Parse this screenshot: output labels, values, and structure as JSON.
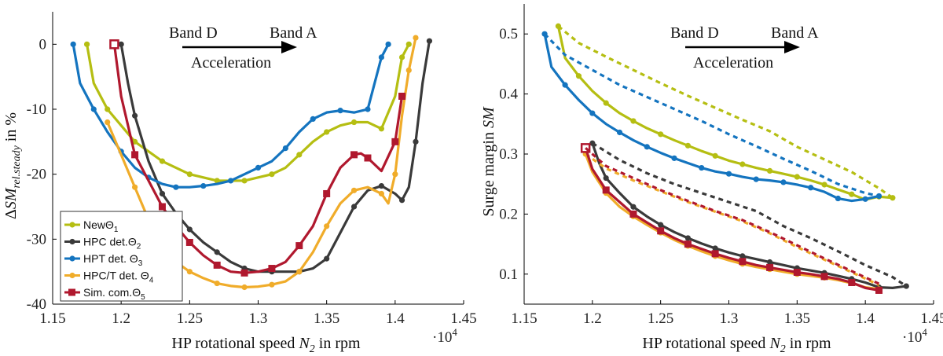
{
  "colors": {
    "new": "#b5be12",
    "hpc": "#3a3a3a",
    "hpt": "#1474bf",
    "hpct": "#f0ac2a",
    "sim": "#b0182e"
  },
  "chart_data": [
    {
      "type": "line",
      "ylabel": "ΔSM_rel.steady in %",
      "ylabel_parts": {
        "delta": "Δ",
        "sym": "SM",
        "sub": "rel.steady",
        "unit": " in %"
      },
      "xlabel": "HP rotational speed N_2 in rpm",
      "xlabel_parts": {
        "pre": "HP rotational speed ",
        "sym": "N",
        "sub": "2",
        "unit": " in rpm"
      },
      "x_exponent_label": "·10",
      "x_exponent_power": "4",
      "xlim": [
        1.15,
        1.45
      ],
      "ylim": [
        -40,
        5
      ],
      "xticks": [
        "1.15",
        "1.2",
        "1.25",
        "1.3",
        "1.35",
        "1.4",
        "1.45"
      ],
      "yticks": [
        "0",
        "-10",
        "-20",
        "-30",
        "-40"
      ],
      "annotation": {
        "left": "Band D",
        "right": "Band A",
        "below": "Acceleration"
      },
      "legend": [
        {
          "key": "new",
          "label": "New",
          "sym": "Θ",
          "sub": "1"
        },
        {
          "key": "hpc",
          "label": "HPC det.",
          "sym": "Θ",
          "sub": "2"
        },
        {
          "key": "hpt",
          "label": "HPT det. ",
          "sym": "Θ",
          "sub": "3"
        },
        {
          "key": "hpct",
          "label": "HPC/T det. ",
          "sym": "Θ",
          "sub": "4"
        },
        {
          "key": "sim",
          "label": "Sim. com.",
          "sym": "Θ",
          "sub": "5"
        }
      ],
      "series": [
        {
          "key": "new",
          "x": [
            1.175,
            1.18,
            1.19,
            1.2,
            1.21,
            1.22,
            1.23,
            1.24,
            1.25,
            1.26,
            1.27,
            1.28,
            1.29,
            1.3,
            1.31,
            1.32,
            1.33,
            1.34,
            1.35,
            1.36,
            1.37,
            1.38,
            1.39,
            1.4,
            1.405,
            1.41
          ],
          "y": [
            0,
            -6,
            -10,
            -12.5,
            -15,
            -16.5,
            -18,
            -19,
            -20,
            -20.5,
            -21,
            -21,
            -21,
            -20.5,
            -20,
            -19,
            -17,
            -15,
            -13.5,
            -12.5,
            -12,
            -12,
            -13,
            -8,
            -2,
            0
          ]
        },
        {
          "key": "hpc",
          "x": [
            1.2,
            1.205,
            1.21,
            1.22,
            1.23,
            1.24,
            1.25,
            1.26,
            1.27,
            1.28,
            1.29,
            1.3,
            1.31,
            1.32,
            1.33,
            1.34,
            1.35,
            1.36,
            1.37,
            1.38,
            1.39,
            1.4,
            1.405,
            1.41,
            1.415,
            1.42,
            1.425
          ],
          "y": [
            0,
            -6,
            -11,
            -18,
            -23,
            -26,
            -28.5,
            -30.5,
            -32,
            -33.5,
            -34.5,
            -35,
            -35,
            -35,
            -35,
            -34.5,
            -33,
            -29,
            -25,
            -22.5,
            -21.8,
            -23,
            -24,
            -22,
            -15,
            -6,
            0.5
          ]
        },
        {
          "key": "hpt",
          "x": [
            1.165,
            1.17,
            1.18,
            1.19,
            1.2,
            1.21,
            1.22,
            1.23,
            1.24,
            1.25,
            1.26,
            1.27,
            1.28,
            1.29,
            1.3,
            1.31,
            1.32,
            1.33,
            1.34,
            1.35,
            1.36,
            1.37,
            1.38,
            1.385,
            1.39,
            1.395
          ],
          "y": [
            0,
            -6,
            -10,
            -13.5,
            -16.5,
            -19,
            -20.5,
            -21.5,
            -22,
            -22,
            -21.8,
            -21.5,
            -21,
            -20,
            -19,
            -18,
            -16,
            -13.5,
            -11.5,
            -10.5,
            -10.2,
            -10.5,
            -10,
            -6,
            -2,
            0
          ]
        },
        {
          "key": "hpct",
          "x": [
            1.19,
            1.2,
            1.21,
            1.22,
            1.23,
            1.24,
            1.25,
            1.26,
            1.27,
            1.28,
            1.29,
            1.3,
            1.31,
            1.32,
            1.33,
            1.34,
            1.35,
            1.36,
            1.37,
            1.38,
            1.39,
            1.395,
            1.4,
            1.405,
            1.41,
            1.415
          ],
          "y": [
            -12,
            -17,
            -22,
            -27,
            -31,
            -33.5,
            -35,
            -36,
            -36.8,
            -37.2,
            -37.4,
            -37.3,
            -37,
            -36.5,
            -35,
            -32,
            -28,
            -24.5,
            -22.5,
            -22,
            -23,
            -24.5,
            -20,
            -11,
            -4,
            1
          ]
        },
        {
          "key": "sim",
          "x": [
            1.195,
            1.2,
            1.21,
            1.22,
            1.23,
            1.24,
            1.25,
            1.26,
            1.27,
            1.28,
            1.29,
            1.3,
            1.31,
            1.32,
            1.33,
            1.34,
            1.35,
            1.36,
            1.37,
            1.375,
            1.38,
            1.39,
            1.4,
            1.405
          ],
          "y": [
            0,
            -8,
            -17,
            -21,
            -25,
            -28,
            -30.5,
            -32.5,
            -34,
            -35,
            -35.2,
            -35,
            -34.5,
            -33.5,
            -31,
            -28,
            -23,
            -19,
            -17,
            -16.8,
            -17.5,
            -19.5,
            -15,
            -8
          ]
        }
      ]
    },
    {
      "type": "line",
      "ylabel": "Surge margin SM",
      "ylabel_parts": {
        "pre": "Surge margin ",
        "sym": "SM"
      },
      "xlabel": "HP rotational speed N_2 in rpm",
      "xlabel_parts": {
        "pre": "HP rotational speed ",
        "sym": "N",
        "sub": "2",
        "unit": " in rpm"
      },
      "x_exponent_label": "·10",
      "x_exponent_power": "4",
      "xlim": [
        1.15,
        1.45
      ],
      "ylim": [
        0.05,
        0.55
      ],
      "xticks": [
        "1.15",
        "1.2",
        "1.25",
        "1.3",
        "1.35",
        "1.4",
        "1.45"
      ],
      "yticks": [
        "0.1",
        "0.2",
        "0.3",
        "0.4",
        "0.5"
      ],
      "annotation": {
        "left": "Band D",
        "right": "Band A",
        "below": "Acceleration"
      },
      "series": [
        {
          "key": "new",
          "style": "solid",
          "x": [
            1.175,
            1.18,
            1.19,
            1.2,
            1.21,
            1.22,
            1.23,
            1.24,
            1.25,
            1.26,
            1.27,
            1.28,
            1.29,
            1.3,
            1.31,
            1.32,
            1.33,
            1.34,
            1.35,
            1.36,
            1.37,
            1.38,
            1.39,
            1.4,
            1.41,
            1.42
          ],
          "y": [
            0.513,
            0.46,
            0.43,
            0.405,
            0.385,
            0.368,
            0.355,
            0.343,
            0.333,
            0.323,
            0.314,
            0.305,
            0.297,
            0.289,
            0.283,
            0.277,
            0.272,
            0.267,
            0.262,
            0.256,
            0.249,
            0.241,
            0.233,
            0.224,
            0.229,
            0.227
          ]
        },
        {
          "key": "new",
          "style": "dashed",
          "x": [
            1.175,
            1.19,
            1.21,
            1.23,
            1.25,
            1.27,
            1.29,
            1.31,
            1.33,
            1.35,
            1.37,
            1.39,
            1.41,
            1.42
          ],
          "y": [
            0.513,
            0.485,
            0.462,
            0.44,
            0.418,
            0.397,
            0.377,
            0.357,
            0.338,
            0.312,
            0.291,
            0.27,
            0.243,
            0.227
          ]
        },
        {
          "key": "hpt",
          "style": "solid",
          "x": [
            1.165,
            1.17,
            1.18,
            1.19,
            1.2,
            1.21,
            1.22,
            1.23,
            1.24,
            1.25,
            1.26,
            1.27,
            1.28,
            1.29,
            1.3,
            1.31,
            1.32,
            1.33,
            1.34,
            1.35,
            1.36,
            1.37,
            1.38,
            1.39,
            1.4,
            1.41
          ],
          "y": [
            0.5,
            0.445,
            0.415,
            0.39,
            0.368,
            0.35,
            0.336,
            0.323,
            0.312,
            0.302,
            0.293,
            0.285,
            0.277,
            0.271,
            0.267,
            0.262,
            0.258,
            0.256,
            0.253,
            0.249,
            0.244,
            0.237,
            0.226,
            0.222,
            0.225,
            0.23
          ]
        },
        {
          "key": "hpt",
          "style": "dashed",
          "x": [
            1.165,
            1.18,
            1.2,
            1.22,
            1.24,
            1.26,
            1.28,
            1.3,
            1.32,
            1.34,
            1.36,
            1.38,
            1.4,
            1.41
          ],
          "y": [
            0.5,
            0.465,
            0.44,
            0.415,
            0.395,
            0.375,
            0.355,
            0.333,
            0.313,
            0.292,
            0.272,
            0.25,
            0.235,
            0.23
          ]
        },
        {
          "key": "hpc",
          "style": "solid",
          "x": [
            1.2,
            1.205,
            1.21,
            1.22,
            1.23,
            1.24,
            1.25,
            1.26,
            1.27,
            1.28,
            1.29,
            1.3,
            1.31,
            1.32,
            1.33,
            1.34,
            1.35,
            1.36,
            1.37,
            1.38,
            1.39,
            1.4,
            1.41,
            1.42,
            1.43
          ],
          "y": [
            0.318,
            0.285,
            0.26,
            0.235,
            0.212,
            0.196,
            0.182,
            0.17,
            0.16,
            0.151,
            0.143,
            0.136,
            0.13,
            0.125,
            0.12,
            0.115,
            0.11,
            0.106,
            0.102,
            0.097,
            0.092,
            0.086,
            0.078,
            0.077,
            0.08
          ]
        },
        {
          "key": "hpc",
          "style": "dashed",
          "x": [
            1.2,
            1.22,
            1.24,
            1.26,
            1.28,
            1.3,
            1.32,
            1.34,
            1.36,
            1.38,
            1.4,
            1.42,
            1.43
          ],
          "y": [
            0.318,
            0.29,
            0.268,
            0.25,
            0.235,
            0.22,
            0.205,
            0.18,
            0.16,
            0.138,
            0.115,
            0.095,
            0.08
          ]
        },
        {
          "key": "hpct",
          "style": "solid",
          "x": [
            1.195,
            1.2,
            1.21,
            1.22,
            1.23,
            1.24,
            1.25,
            1.26,
            1.27,
            1.28,
            1.29,
            1.3,
            1.31,
            1.32,
            1.33,
            1.34,
            1.35,
            1.36,
            1.37,
            1.38,
            1.39,
            1.4,
            1.41
          ],
          "y": [
            0.3,
            0.27,
            0.235,
            0.212,
            0.196,
            0.182,
            0.169,
            0.157,
            0.147,
            0.138,
            0.13,
            0.123,
            0.117,
            0.112,
            0.108,
            0.104,
            0.1,
            0.097,
            0.094,
            0.09,
            0.085,
            0.078,
            0.075
          ]
        },
        {
          "key": "hpct",
          "style": "dashed",
          "x": [
            1.195,
            1.21,
            1.23,
            1.25,
            1.27,
            1.29,
            1.31,
            1.33,
            1.35,
            1.37,
            1.39,
            1.41
          ],
          "y": [
            0.3,
            0.276,
            0.256,
            0.238,
            0.22,
            0.204,
            0.188,
            0.168,
            0.145,
            0.124,
            0.103,
            0.082
          ]
        },
        {
          "key": "sim",
          "style": "solid",
          "x": [
            1.195,
            1.2,
            1.21,
            1.22,
            1.23,
            1.24,
            1.25,
            1.26,
            1.27,
            1.28,
            1.29,
            1.3,
            1.31,
            1.32,
            1.33,
            1.34,
            1.35,
            1.36,
            1.37,
            1.38,
            1.39,
            1.4,
            1.41
          ],
          "y": [
            0.31,
            0.275,
            0.24,
            0.22,
            0.2,
            0.186,
            0.172,
            0.16,
            0.15,
            0.142,
            0.134,
            0.127,
            0.121,
            0.115,
            0.111,
            0.107,
            0.103,
            0.1,
            0.096,
            0.092,
            0.086,
            0.077,
            0.073
          ]
        },
        {
          "key": "sim",
          "style": "dashed",
          "x": [
            1.195,
            1.21,
            1.23,
            1.25,
            1.27,
            1.29,
            1.31,
            1.33,
            1.35,
            1.37,
            1.39,
            1.41
          ],
          "y": [
            0.31,
            0.28,
            0.26,
            0.24,
            0.222,
            0.205,
            0.19,
            0.17,
            0.148,
            0.126,
            0.105,
            0.084
          ]
        }
      ]
    }
  ]
}
